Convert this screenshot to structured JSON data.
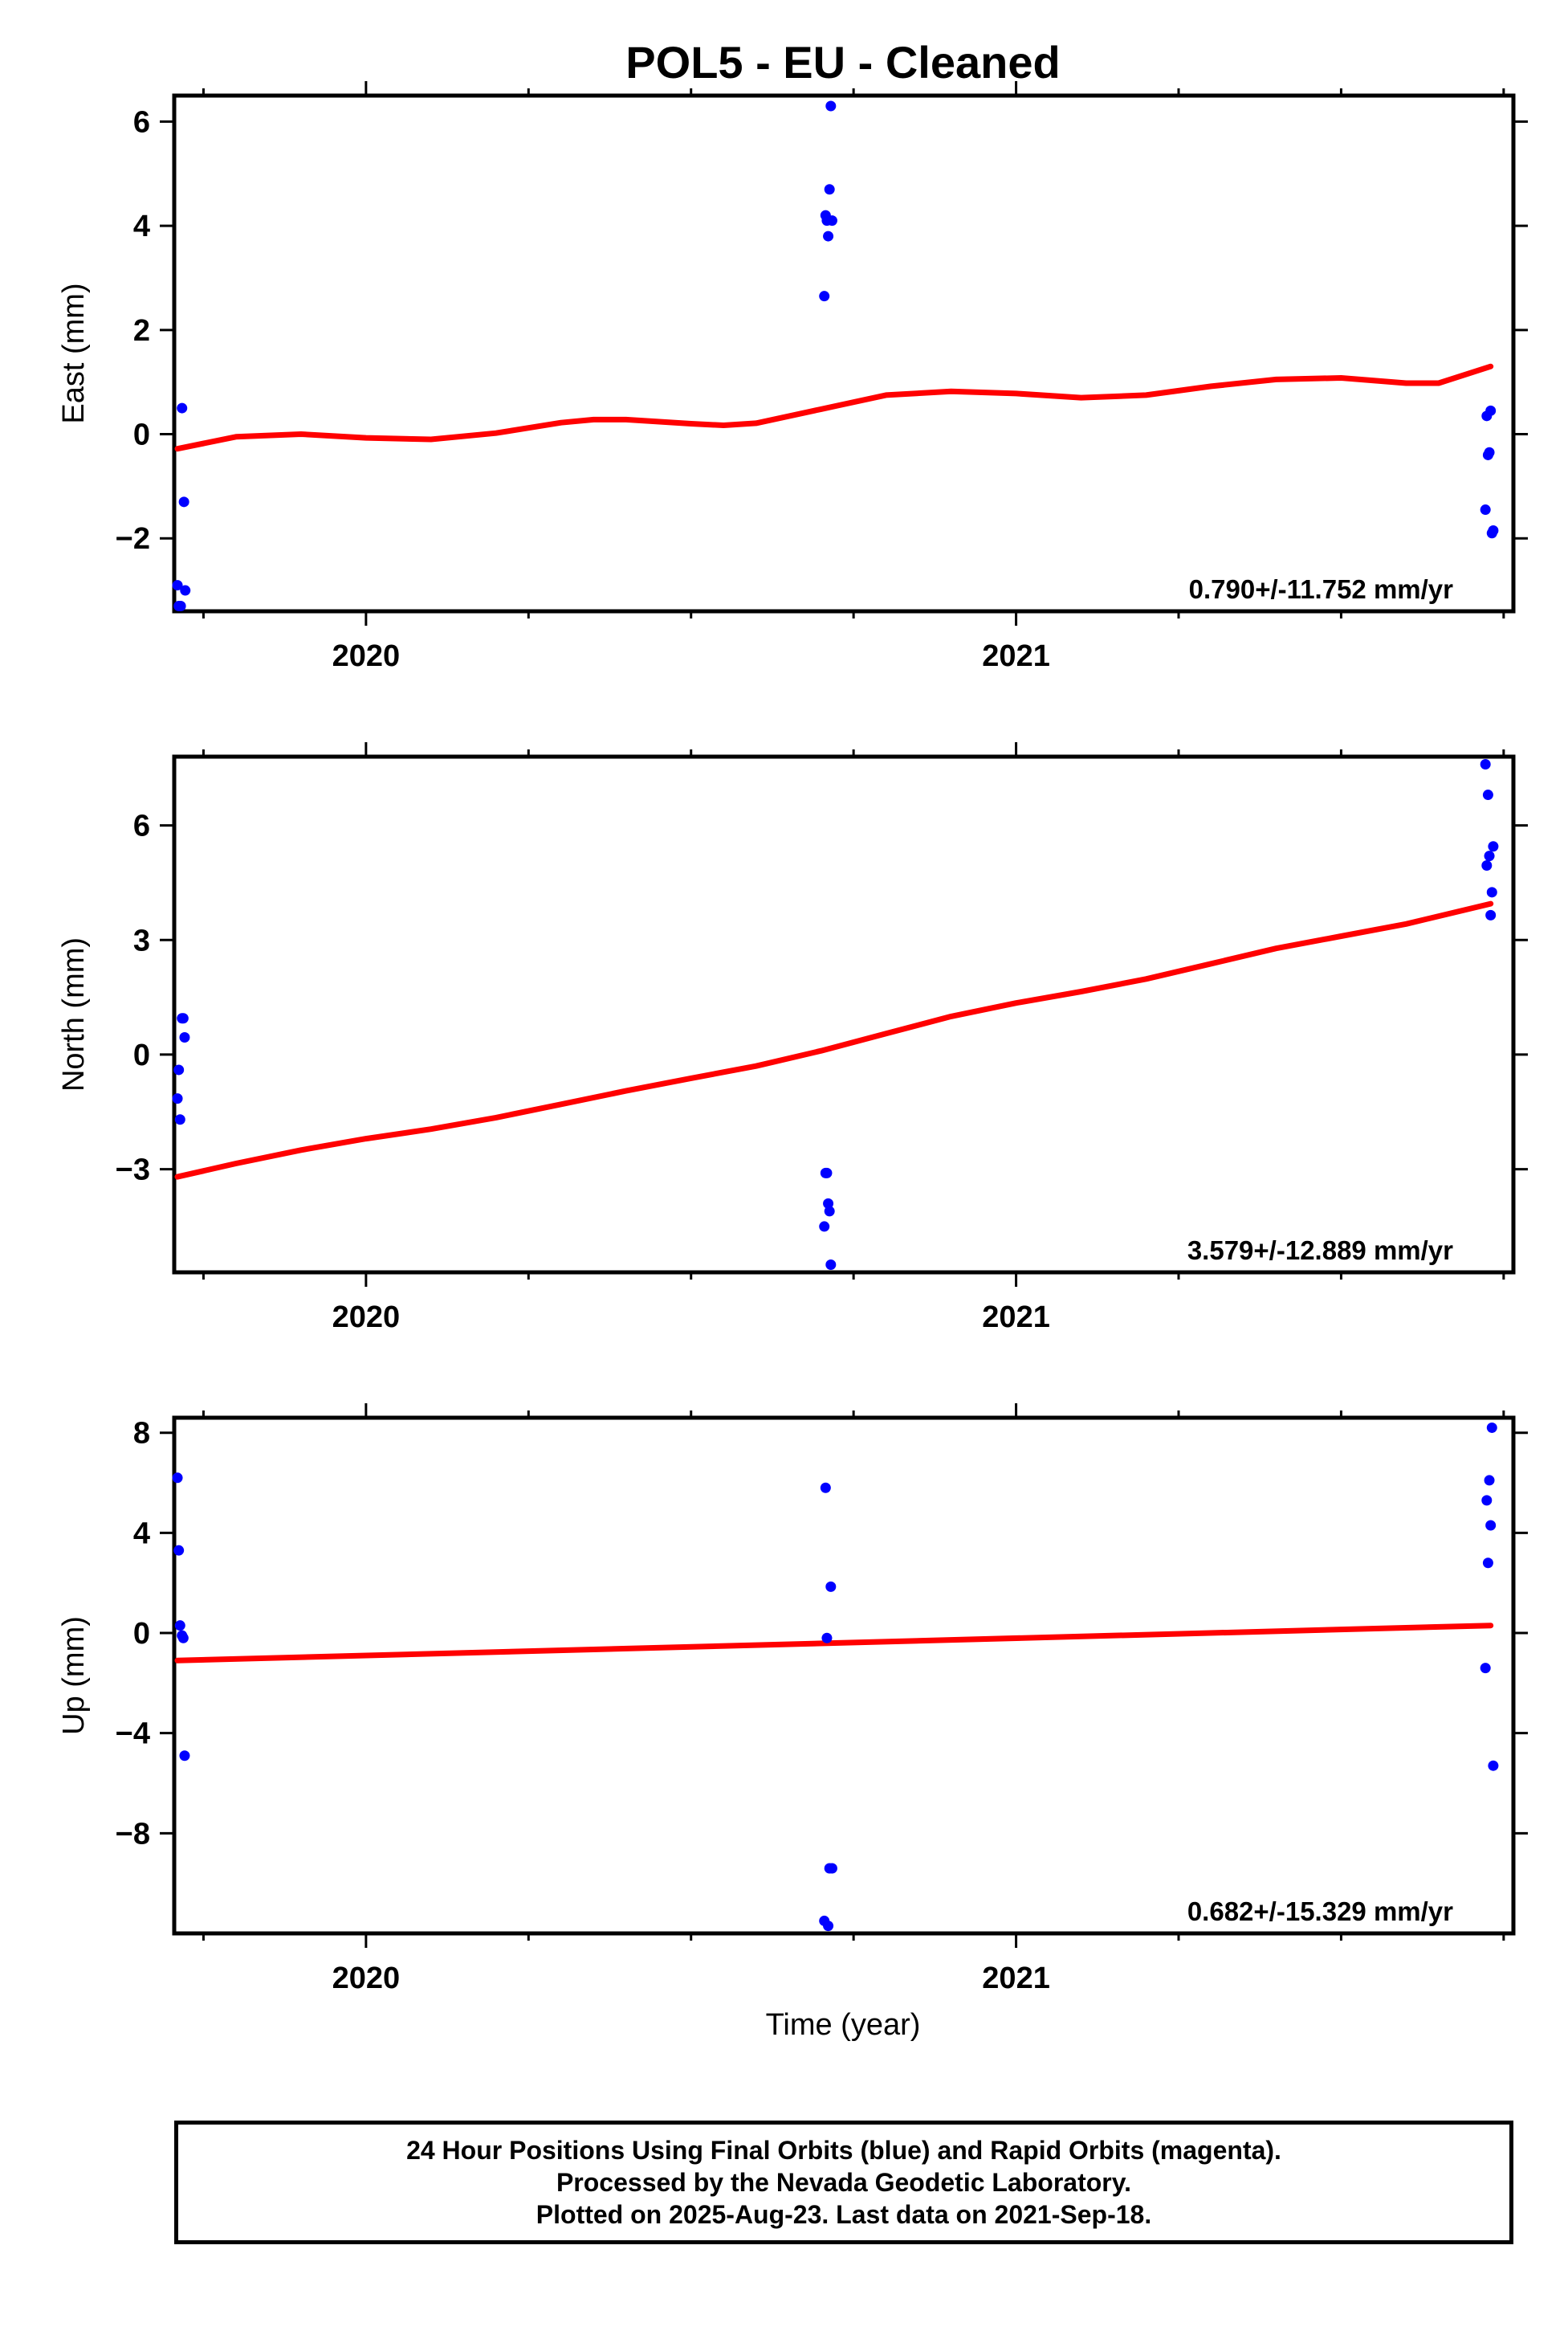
{
  "title": "POL5  - EU - Cleaned",
  "colors": {
    "points": "#0000ff",
    "fit": "#ff0000",
    "frame": "#000000"
  },
  "x_axis": {
    "xlabel": "Time (year)",
    "xlim": [
      2019.705,
      2021.765
    ],
    "major_ticks": [
      2020,
      2021
    ],
    "tick_labels": [
      "2020",
      "2021"
    ],
    "minor_ticks": [
      2019.75,
      2020.25,
      2020.5,
      2020.75,
      2021.25,
      2021.5,
      2021.75
    ]
  },
  "chart_data": [
    {
      "type": "scatter",
      "ylabel": "East (mm)",
      "ylim": [
        -3.4,
        6.5
      ],
      "yticks": [
        -2,
        0,
        2,
        4,
        6
      ],
      "ytick_labels": [
        "−2",
        "0",
        "2",
        "4",
        "6"
      ],
      "rate": "0.790+/-11.752 mm/yr",
      "points": [
        [
          2019.71,
          -2.9
        ],
        [
          2019.712,
          -3.3
        ],
        [
          2019.715,
          -3.3
        ],
        [
          2019.717,
          0.5
        ],
        [
          2019.72,
          -1.3
        ],
        [
          2019.722,
          -3.0
        ],
        [
          2020.705,
          2.65
        ],
        [
          2020.707,
          4.2
        ],
        [
          2020.709,
          4.1
        ],
        [
          2020.711,
          3.8
        ],
        [
          2020.713,
          4.7
        ],
        [
          2020.715,
          6.3
        ],
        [
          2020.717,
          4.1
        ],
        [
          2021.722,
          -1.45
        ],
        [
          2021.724,
          0.35
        ],
        [
          2021.726,
          -0.4
        ],
        [
          2021.728,
          -0.35
        ],
        [
          2021.73,
          0.45
        ],
        [
          2021.732,
          -1.9
        ],
        [
          2021.734,
          -1.85
        ]
      ],
      "fit": {
        "x": [
          2019.71,
          2019.8,
          2019.9,
          2020.0,
          2020.1,
          2020.2,
          2020.3,
          2020.35,
          2020.4,
          2020.5,
          2020.55,
          2020.6,
          2020.7,
          2020.8,
          2020.9,
          2021.0,
          2021.1,
          2021.2,
          2021.3,
          2021.4,
          2021.5,
          2021.6,
          2021.65,
          2021.73
        ],
        "y": [
          -0.28,
          -0.05,
          0.0,
          -0.07,
          -0.1,
          0.02,
          0.22,
          0.28,
          0.28,
          0.2,
          0.17,
          0.21,
          0.48,
          0.75,
          0.82,
          0.78,
          0.7,
          0.75,
          0.92,
          1.05,
          1.08,
          0.98,
          0.98,
          1.3
        ]
      }
    },
    {
      "type": "scatter",
      "ylabel": "North (mm)",
      "ylim": [
        -5.7,
        7.8
      ],
      "yticks": [
        -3,
        0,
        3,
        6
      ],
      "ytick_labels": [
        "−3",
        "0",
        "3",
        "6"
      ],
      "rate": "3.579+/-12.889 mm/yr",
      "points": [
        [
          2019.71,
          -1.15
        ],
        [
          2019.712,
          -0.4
        ],
        [
          2019.714,
          -1.7
        ],
        [
          2019.717,
          0.95
        ],
        [
          2019.719,
          0.95
        ],
        [
          2019.721,
          0.45
        ],
        [
          2020.705,
          -4.5
        ],
        [
          2020.707,
          -3.1
        ],
        [
          2020.709,
          -3.1
        ],
        [
          2020.711,
          -3.9
        ],
        [
          2020.713,
          -4.1
        ],
        [
          2020.715,
          -5.5
        ],
        [
          2021.722,
          7.6
        ],
        [
          2021.724,
          4.95
        ],
        [
          2021.726,
          6.8
        ],
        [
          2021.728,
          5.2
        ],
        [
          2021.73,
          3.65
        ],
        [
          2021.732,
          4.25
        ],
        [
          2021.734,
          5.45
        ]
      ],
      "fit": {
        "x": [
          2019.71,
          2019.8,
          2019.9,
          2020.0,
          2020.1,
          2020.2,
          2020.3,
          2020.4,
          2020.5,
          2020.6,
          2020.7,
          2020.8,
          2020.9,
          2021.0,
          2021.1,
          2021.2,
          2021.3,
          2021.4,
          2021.5,
          2021.6,
          2021.73
        ],
        "y": [
          -3.2,
          -2.85,
          -2.5,
          -2.2,
          -1.95,
          -1.65,
          -1.3,
          -0.95,
          -0.62,
          -0.3,
          0.1,
          0.55,
          1.0,
          1.35,
          1.65,
          1.98,
          2.38,
          2.78,
          3.1,
          3.42,
          3.95
        ]
      }
    },
    {
      "type": "scatter",
      "ylabel": "Up (mm)",
      "ylim": [
        -12,
        8.6
      ],
      "yticks": [
        -8,
        -4,
        0,
        4,
        8
      ],
      "ytick_labels": [
        "−8",
        "−4",
        "0",
        "4",
        "8"
      ],
      "rate": "0.682+/-15.329 mm/yr",
      "points": [
        [
          2019.71,
          6.2
        ],
        [
          2019.712,
          3.3
        ],
        [
          2019.714,
          0.3
        ],
        [
          2019.717,
          -0.1
        ],
        [
          2019.719,
          -0.2
        ],
        [
          2019.721,
          -4.9
        ],
        [
          2020.705,
          -11.5
        ],
        [
          2020.707,
          5.8
        ],
        [
          2020.709,
          -0.2
        ],
        [
          2020.711,
          -11.7
        ],
        [
          2020.713,
          -9.4
        ],
        [
          2020.715,
          1.85
        ],
        [
          2020.717,
          -9.4
        ],
        [
          2021.722,
          -1.4
        ],
        [
          2021.724,
          5.3
        ],
        [
          2021.726,
          2.8
        ],
        [
          2021.728,
          6.1
        ],
        [
          2021.73,
          4.3
        ],
        [
          2021.732,
          8.2
        ],
        [
          2021.734,
          -5.3
        ]
      ],
      "fit": {
        "x": [
          2019.71,
          2021.73
        ],
        "y": [
          -1.1,
          0.3
        ]
      }
    }
  ],
  "footer": {
    "line1": "24 Hour Positions Using Final Orbits (blue) and Rapid Orbits (magenta).",
    "line2": "Processed by the Nevada Geodetic Laboratory.",
    "line3": "Plotted on 2025-Aug-23. Last data on 2021-Sep-18."
  }
}
